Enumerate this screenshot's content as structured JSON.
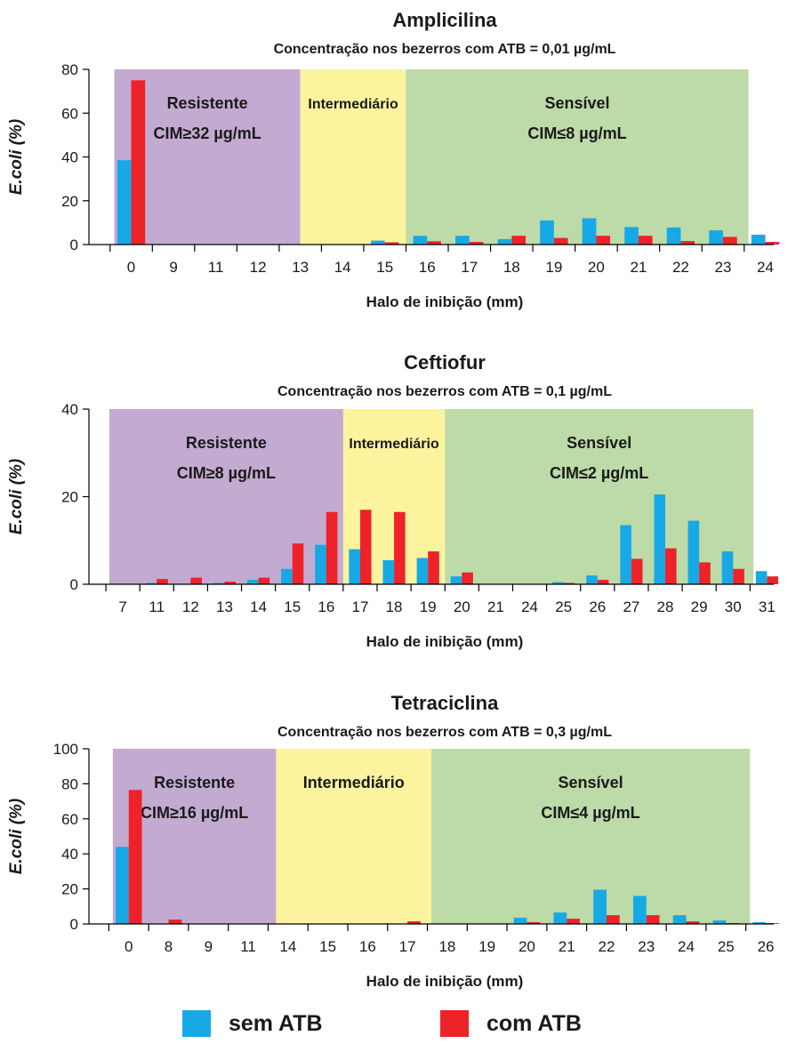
{
  "colors": {
    "sem_atb": "#17A9E6",
    "com_atb": "#EE2229",
    "resistente": "#C3AAD1",
    "intermediario": "#FCF39F",
    "sensivel": "#BCDBA8"
  },
  "legend": {
    "sem_label": "sem ATB",
    "com_label": "com ATB"
  },
  "chart_data": [
    {
      "type": "bar",
      "title": "Amplicilina",
      "subtitle": "Concentração nos bezerros com ATB = 0,01 µg/mL",
      "xlabel": "Halo de inibição (mm)",
      "ylabel": "E.coli (%)",
      "ylim": [
        0,
        80
      ],
      "yticks": [
        0,
        20,
        40,
        60,
        80
      ],
      "categories": [
        "0",
        "9",
        "11",
        "12",
        "13",
        "14",
        "15",
        "16",
        "17",
        "18",
        "19",
        "20",
        "21",
        "22",
        "23",
        "24"
      ],
      "series": [
        {
          "name": "sem ATB",
          "values": [
            38.5,
            0,
            0,
            0,
            0,
            0,
            1.8,
            4,
            4,
            2.5,
            11,
            12,
            8,
            7.8,
            6.5,
            4.5
          ]
        },
        {
          "name": "com ATB",
          "values": [
            75,
            0,
            0,
            0,
            0,
            0,
            1,
            1.5,
            1.2,
            4,
            3,
            4,
            4,
            1.6,
            3.5,
            1.2
          ]
        }
      ],
      "zones": [
        {
          "label": "Resistente",
          "cim": "CIM≥32 µg/mL",
          "from": 0.6,
          "to": 5
        },
        {
          "label": "Intermediário",
          "cim": "",
          "from": 5,
          "to": 7.5
        },
        {
          "label": "Sensível",
          "cim": "CIM≤8 µg/mL",
          "from": 7.5,
          "to": 15.6
        }
      ]
    },
    {
      "type": "bar",
      "title": "Ceftiofur",
      "subtitle": "Concentração nos bezerros com ATB = 0,1 µg/mL",
      "xlabel": "Halo de inibição (mm)",
      "ylabel": "E.coli (%)",
      "ylim": [
        0,
        40
      ],
      "yticks": [
        0,
        20,
        40
      ],
      "categories": [
        "7",
        "11",
        "12",
        "13",
        "14",
        "15",
        "16",
        "17",
        "18",
        "19",
        "20",
        "21",
        "24",
        "25",
        "26",
        "27",
        "28",
        "29",
        "30",
        "31"
      ],
      "series": [
        {
          "name": "sem ATB",
          "values": [
            0,
            0.3,
            0,
            0.3,
            1,
            3.5,
            9,
            8,
            5.5,
            6,
            1.8,
            0,
            0,
            0.5,
            2,
            13.5,
            20.5,
            14.5,
            7.5,
            3
          ]
        },
        {
          "name": "com ATB",
          "values": [
            0,
            1.2,
            1.5,
            0.6,
            1.5,
            9.3,
            16.5,
            17,
            16.5,
            7.5,
            2.7,
            0,
            0,
            0.3,
            1,
            5.8,
            8.2,
            5,
            3.5,
            1.8
          ]
        }
      ],
      "zones": [
        {
          "label": "Resistente",
          "cim": "CIM≥8 µg/mL",
          "from": 0.6,
          "to": 7.5
        },
        {
          "label": "Intermediário",
          "cim": "",
          "from": 7.5,
          "to": 10.5
        },
        {
          "label": "Sensível",
          "cim": "CIM≤2 µg/mL",
          "from": 10.5,
          "to": 19.6
        }
      ]
    },
    {
      "type": "bar",
      "title": "Tetraciclina",
      "subtitle": "Concentração nos bezerros com ATB = 0,3 µg/mL",
      "xlabel": "Halo de inibição (mm)",
      "ylabel": "E.coli (%)",
      "ylim": [
        0,
        100
      ],
      "yticks": [
        0,
        20,
        40,
        60,
        80,
        100
      ],
      "categories": [
        "0",
        "8",
        "9",
        "11",
        "14",
        "15",
        "16",
        "17",
        "18",
        "19",
        "20",
        "21",
        "22",
        "23",
        "24",
        "25",
        "26"
      ],
      "series": [
        {
          "name": "sem ATB",
          "values": [
            44,
            0,
            0,
            0,
            0,
            0,
            0,
            0,
            0,
            0,
            3.5,
            6.5,
            19.5,
            16,
            5,
            2,
            1
          ]
        },
        {
          "name": "com ATB",
          "values": [
            76.5,
            2.5,
            0,
            0,
            0,
            0,
            0,
            1.5,
            0,
            0,
            1,
            3,
            5,
            5,
            1.5,
            0.5,
            0.5
          ]
        }
      ],
      "zones": [
        {
          "label": "Resistente",
          "cim": "CIM≥16 µg/mL",
          "from": 0.6,
          "to": 4.7
        },
        {
          "label": "Intermediário",
          "cim": "",
          "from": 4.7,
          "to": 8.6
        },
        {
          "label": "Sensível",
          "cim": "CIM≤4 µg/mL",
          "from": 8.6,
          "to": 16.6
        }
      ]
    }
  ]
}
